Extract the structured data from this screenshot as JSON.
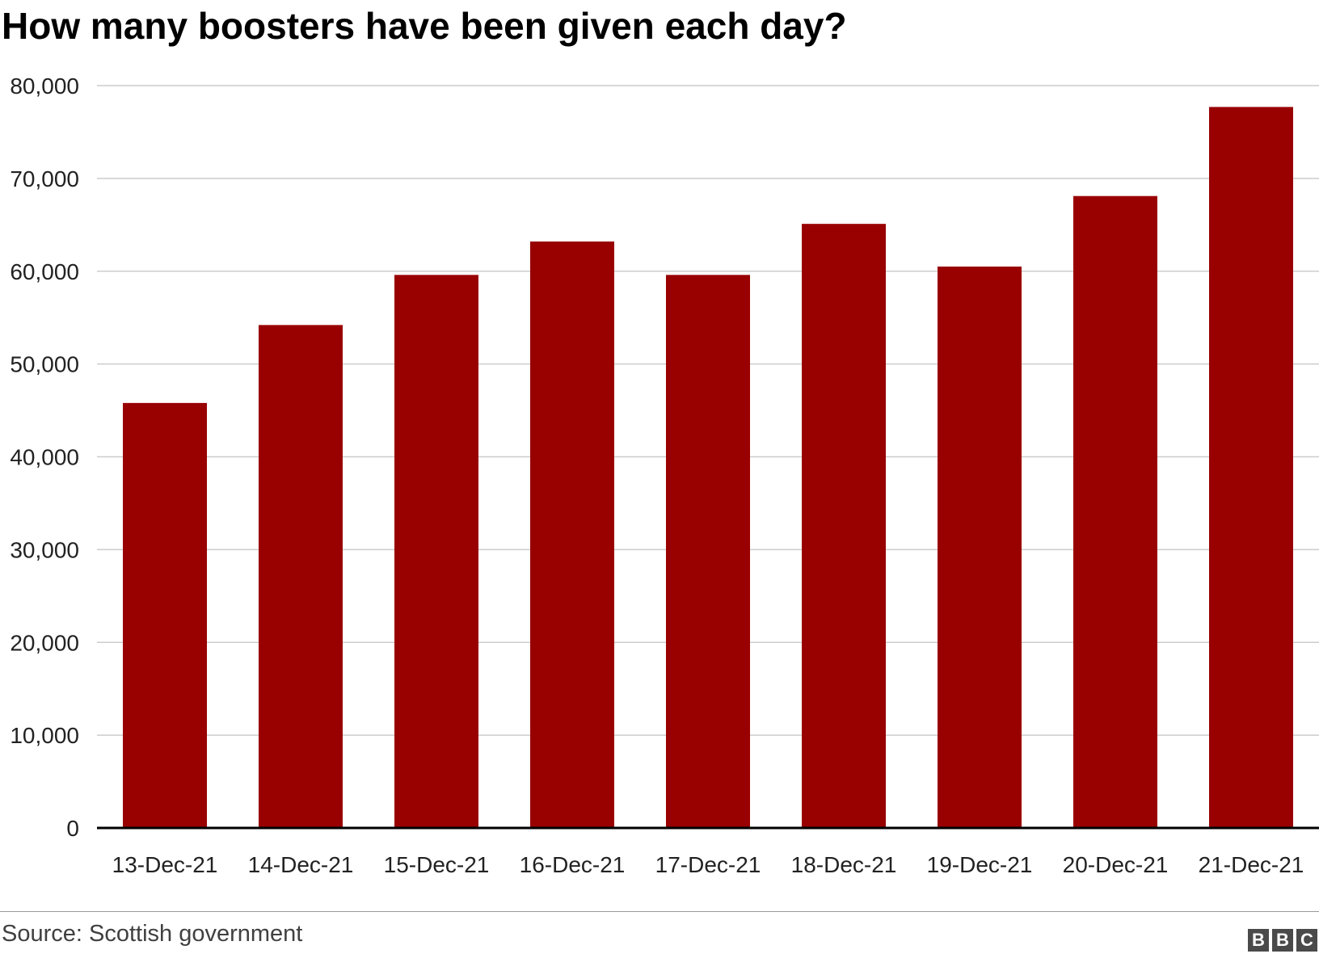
{
  "title": "How many boosters have been given each day?",
  "source": "Source: Scottish government",
  "logo": {
    "letters": [
      "B",
      "B",
      "C"
    ],
    "color": "#4a4a4a"
  },
  "colors": {
    "bar": "#990000",
    "grid": "#cccccc",
    "axis": "#000000"
  },
  "chart_data": {
    "type": "bar",
    "categories": [
      "13-Dec-21",
      "14-Dec-21",
      "15-Dec-21",
      "16-Dec-21",
      "17-Dec-21",
      "18-Dec-21",
      "19-Dec-21",
      "20-Dec-21",
      "21-Dec-21"
    ],
    "values": [
      45800,
      54200,
      59600,
      63200,
      59600,
      65100,
      60500,
      68100,
      77700
    ],
    "yticks": [
      0,
      10000,
      20000,
      30000,
      40000,
      50000,
      60000,
      70000,
      80000
    ],
    "ytick_labels": [
      "0",
      "10,000",
      "20,000",
      "30,000",
      "40,000",
      "50,000",
      "60,000",
      "70,000",
      "80,000"
    ],
    "ylim": [
      0,
      80000
    ],
    "title": "How many boosters have been given each day?",
    "xlabel": "",
    "ylabel": "",
    "grid": true,
    "legend": "none"
  }
}
